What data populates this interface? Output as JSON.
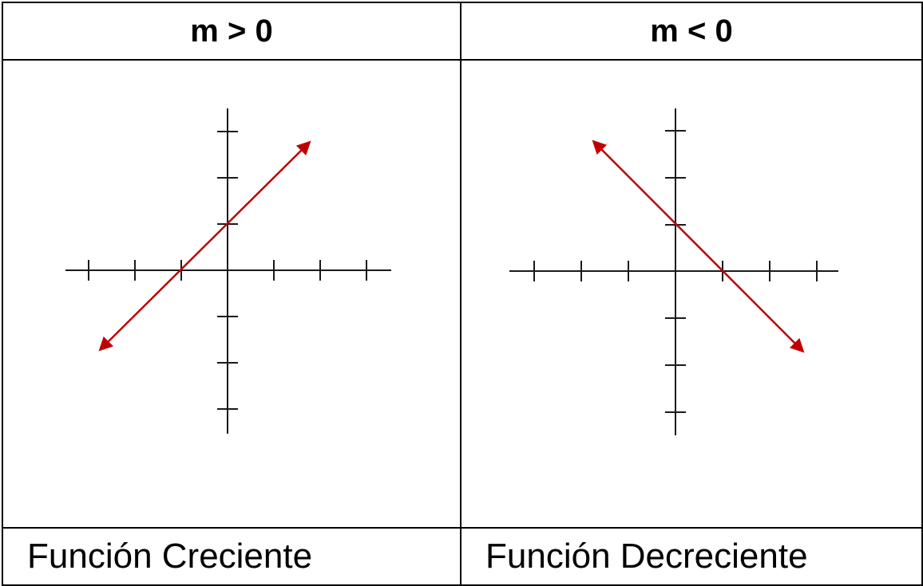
{
  "panels": [
    {
      "condition": "m > 0",
      "caption": "Función Creciente",
      "line_color": "#c00000"
    },
    {
      "condition": "m < 0",
      "caption": "Función Decreciente",
      "line_color": "#c00000"
    }
  ]
}
